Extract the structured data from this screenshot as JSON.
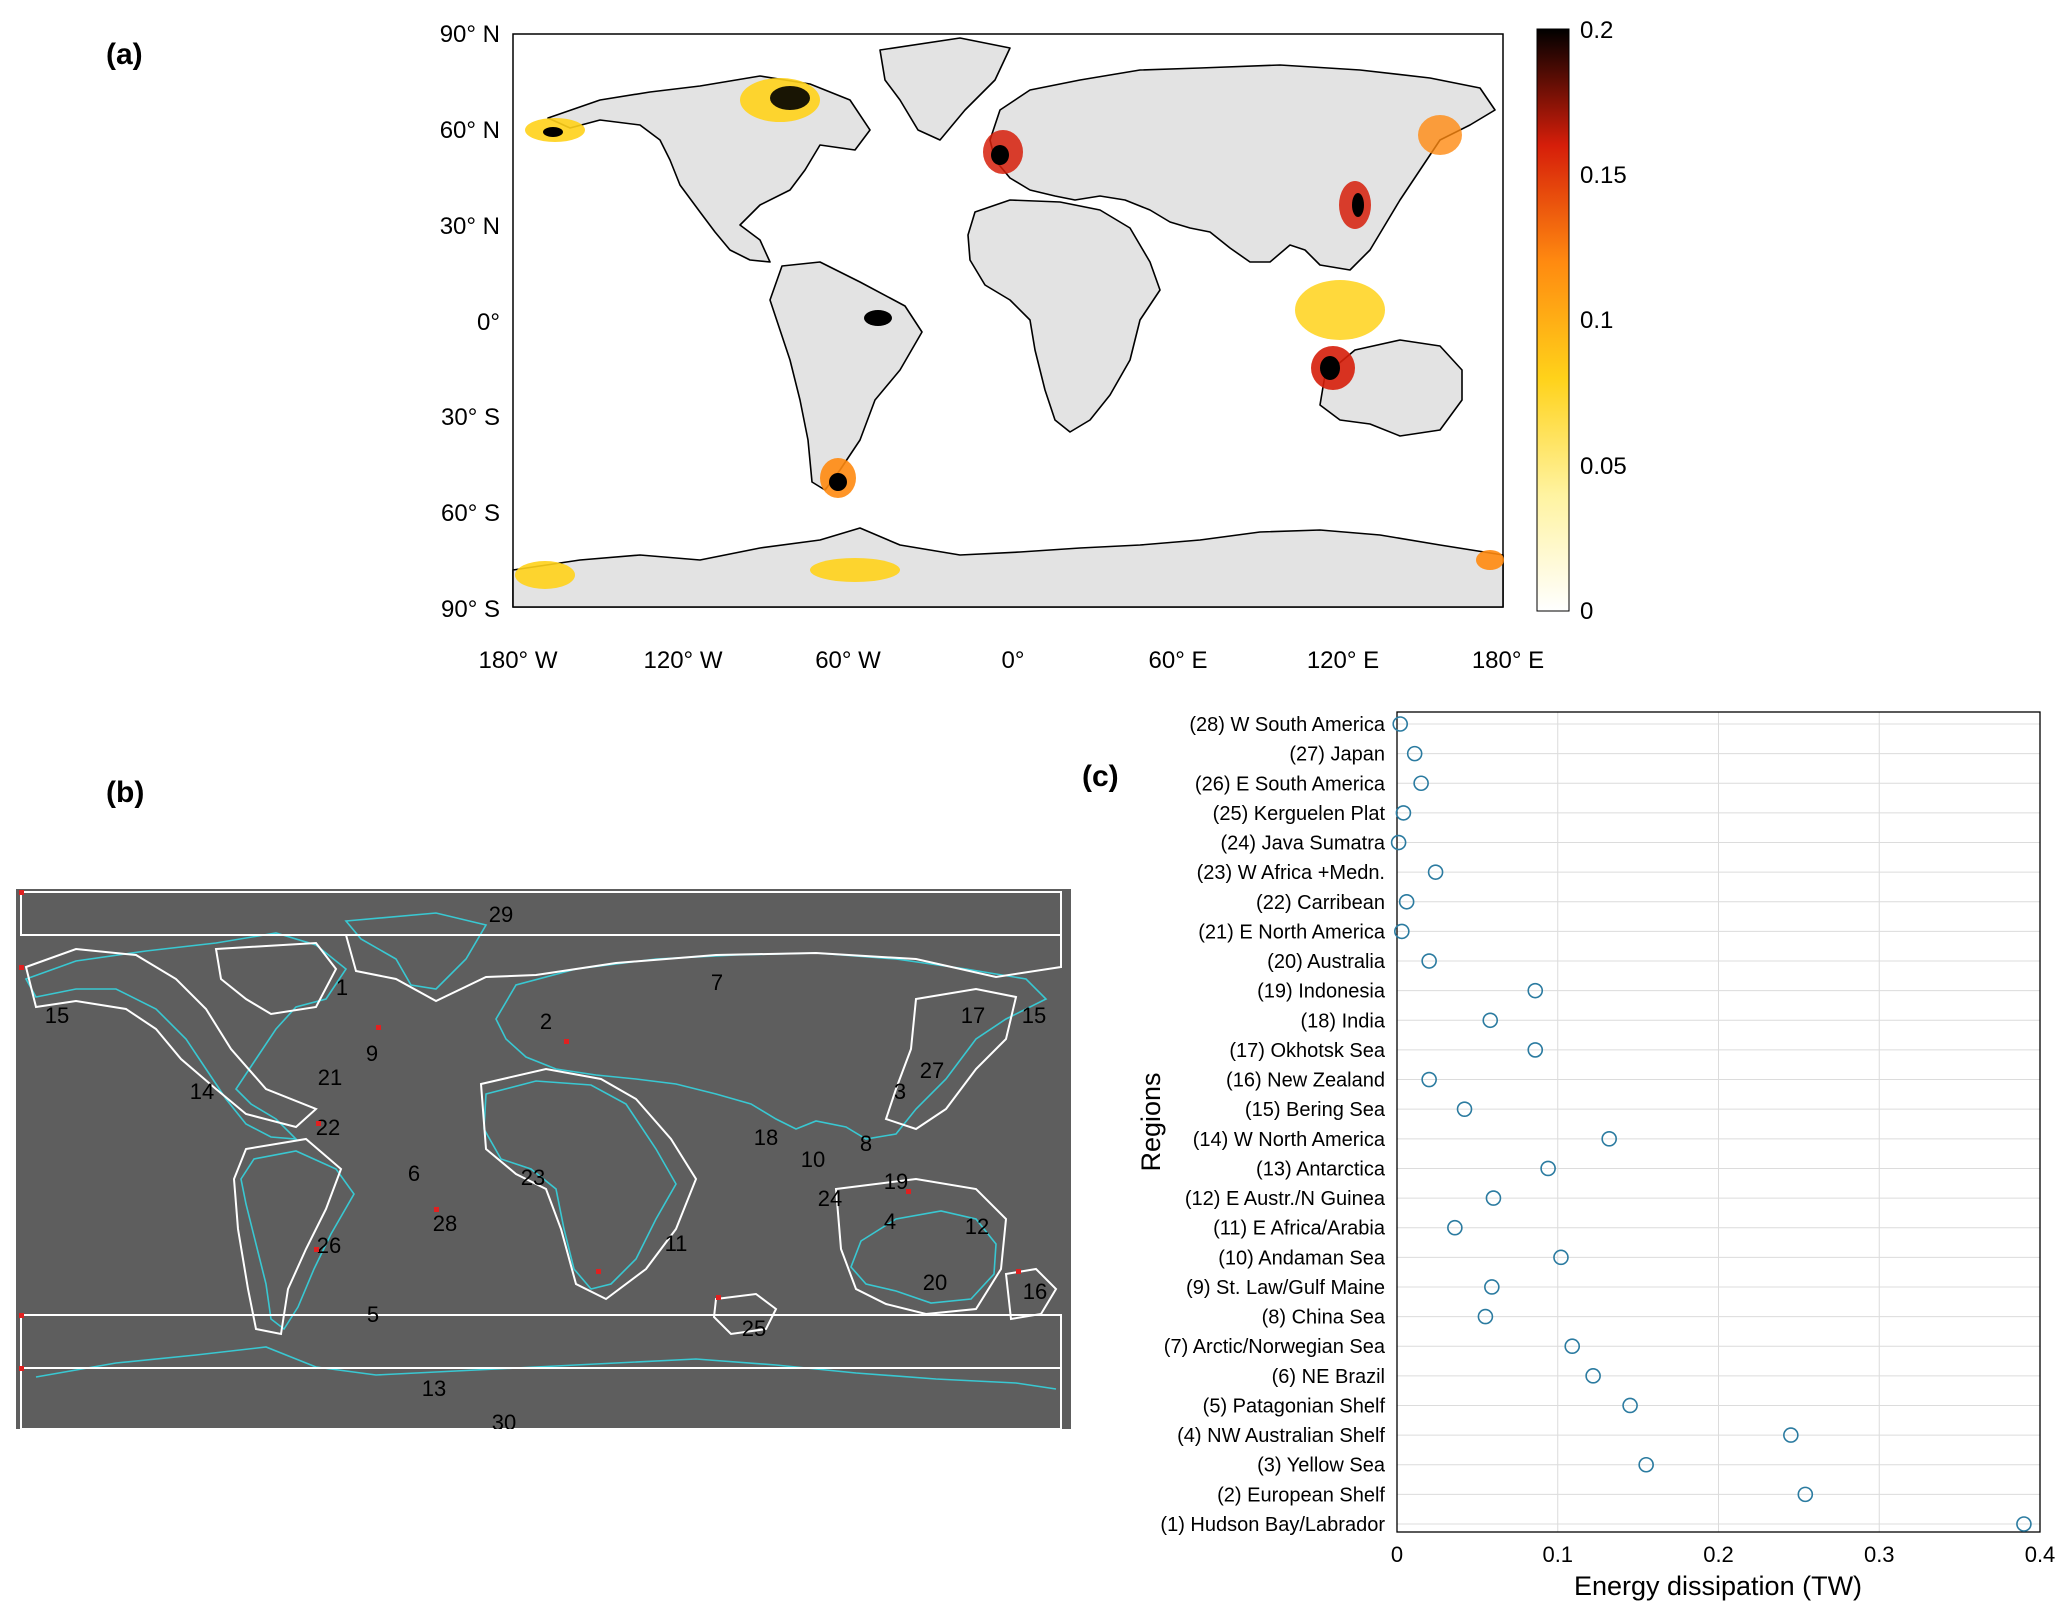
{
  "panels": {
    "a": "(a)",
    "b": "(b)",
    "c": "(c)"
  },
  "map_a": {
    "lat_labels": [
      "90° N",
      "60° N",
      "30° N",
      "0°",
      "30° S",
      "60° S",
      "90° S"
    ],
    "lon_labels": [
      "180° W",
      "120° W",
      "60° W",
      "0°",
      "60° E",
      "120° E",
      "180° E"
    ],
    "colorbar_ticks": [
      "0.2",
      "0.15",
      "0.1",
      "0.05",
      "0"
    ],
    "colors": {
      "land": "#e3e3e3",
      "ocean": "#ffffff",
      "high": "#000000",
      "mid": "#e8330c",
      "low": "#ffd21a"
    }
  },
  "map_b": {
    "region_numbers": [
      "29",
      "1",
      "7",
      "15",
      "2",
      "15",
      "17",
      "9",
      "21",
      "27",
      "3",
      "14",
      "22",
      "18",
      "8",
      "10",
      "6",
      "23",
      "19",
      "24",
      "28",
      "4",
      "12",
      "26",
      "11",
      "20",
      "16",
      "5",
      "25",
      "13",
      "30"
    ],
    "colors": {
      "background": "#5e5e5e",
      "coast": "#39c8d2",
      "outline": "#ffffff",
      "marker": "#e02020"
    }
  },
  "chart_data": {
    "type": "scatter",
    "xlabel": "Energy dissipation (TW)",
    "ylabel": "Regions",
    "xlim": [
      0,
      0.4
    ],
    "x_ticks": [
      "0",
      "0.1",
      "0.2",
      "0.3",
      "0.4"
    ],
    "grid": true,
    "marker_color": "#2b7ba0",
    "categories": [
      "(1) Hudson Bay/Labrador",
      "(2) European Shelf",
      "(3) Yellow Sea",
      "(4) NW Australian Shelf",
      "(5) Patagonian Shelf",
      "(6) NE Brazil",
      "(7) Arctic/Norwegian Sea",
      "(8) China Sea",
      "(9) St. Law/Gulf Maine",
      "(10) Andaman Sea",
      "(11) E Africa/Arabia",
      "(12) E Austr./N Guinea",
      "(13) Antarctica",
      "(14) W North America",
      "(15) Bering Sea",
      "(16) New Zealand",
      "(17) Okhotsk Sea",
      "(18) India",
      "(19) Indonesia",
      "(20)  Australia",
      "(21) E North America",
      "(22) Carribean",
      "(23) W Africa +Medn.",
      "(24) Java Sumatra",
      "(25) Kerguelen Plat",
      "(26) E South America",
      "(27) Japan",
      "(28) W South America"
    ],
    "values": [
      0.39,
      0.254,
      0.155,
      0.245,
      0.145,
      0.122,
      0.109,
      0.055,
      0.059,
      0.102,
      0.036,
      0.06,
      0.094,
      0.132,
      0.042,
      0.02,
      0.086,
      0.058,
      0.086,
      0.02,
      0.003,
      0.006,
      0.024,
      0.001,
      0.004,
      0.015,
      0.011,
      0.002
    ]
  }
}
